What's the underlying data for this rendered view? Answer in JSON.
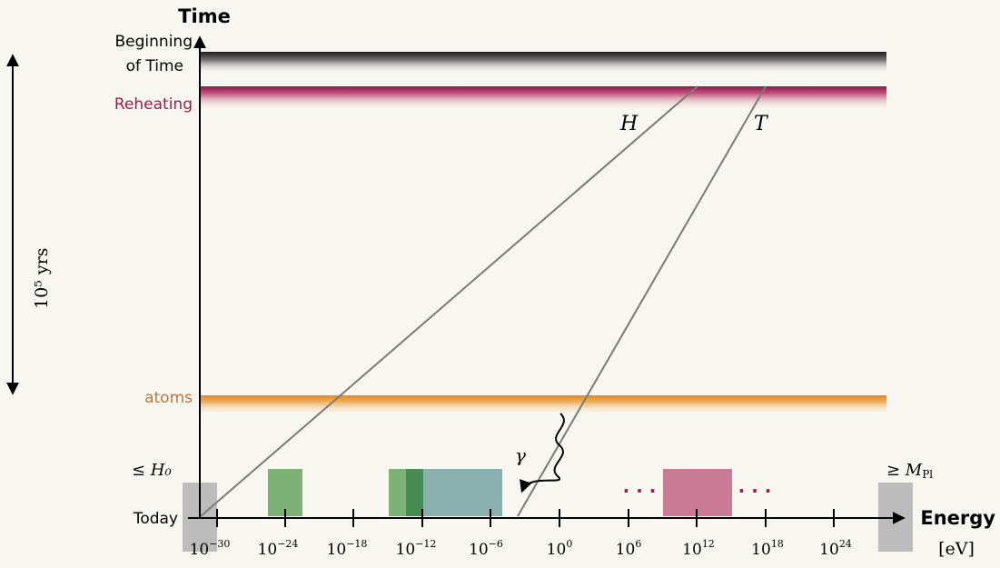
{
  "axes": {
    "time_title": "Time",
    "energy_title": "Energy",
    "energy_unit": "[eV]",
    "time_labels": {
      "beginning_line1": "Beginning",
      "beginning_line2": "of Time",
      "reheating": "Reheating",
      "atoms": "atoms",
      "today": "Today"
    },
    "span_label": "10⁵ yrs",
    "energy_ticks": [
      {
        "base": "10",
        "exp": "−30"
      },
      {
        "base": "10",
        "exp": "−24"
      },
      {
        "base": "10",
        "exp": "−18"
      },
      {
        "base": "10",
        "exp": "−12"
      },
      {
        "base": "10",
        "exp": "−6"
      },
      {
        "base": "10",
        "exp": "0"
      },
      {
        "base": "10",
        "exp": "6"
      },
      {
        "base": "10",
        "exp": "12"
      },
      {
        "base": "10",
        "exp": "18"
      },
      {
        "base": "10",
        "exp": "24"
      }
    ]
  },
  "annotations": {
    "left_bound": "≤ H₀",
    "right_bound_prefix": "≥ M",
    "right_bound_sub": "Pl",
    "hubble_label": "H",
    "temperature_label": "T",
    "photon_label": "γ",
    "ellipsis": "· · ·"
  },
  "colors": {
    "beginning_band": "#3a3a3a",
    "reheating_band": "#9b1b4e",
    "atoms_band": "#e08a1e",
    "green_block": "#6fa866",
    "dark_green_block": "#3e8a4c",
    "teal_block": "#7fa8a8",
    "pink_block": "#c46088",
    "gray_block": "#bcbcbc",
    "reheating_text": "#9b1b4e",
    "atoms_text": "#c0783a"
  }
}
